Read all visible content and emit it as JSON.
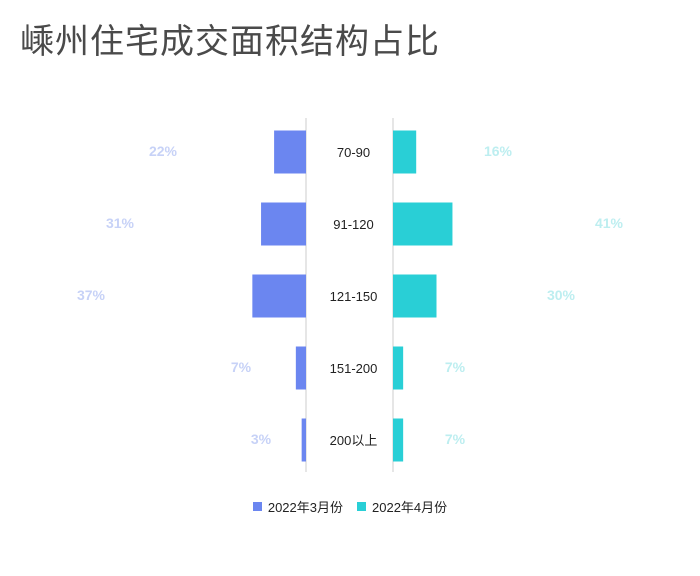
{
  "title": "嵊州住宅成交面积结构占比",
  "colors": {
    "march": "#6b86f0",
    "april": "#29cfd6",
    "march_label": "#c7d2f7",
    "april_label": "#bdeef0",
    "axis": "#cccccc"
  },
  "chart_data": {
    "type": "bar",
    "orientation": "horizontal-butterfly",
    "categories": [
      "70-90",
      "91-120",
      "121-150",
      "151-200",
      "200以上"
    ],
    "series": [
      {
        "name": "2022年3月份",
        "values": [
          22,
          31,
          37,
          7,
          3
        ],
        "labels": [
          "22%",
          "31%",
          "37%",
          "7%",
          "3%"
        ]
      },
      {
        "name": "2022年4月份",
        "values": [
          16,
          41,
          30,
          7,
          7
        ],
        "labels": [
          "16%",
          "41%",
          "30%",
          "7%",
          "7%"
        ]
      }
    ],
    "unit": "%",
    "legend_position": "bottom"
  }
}
